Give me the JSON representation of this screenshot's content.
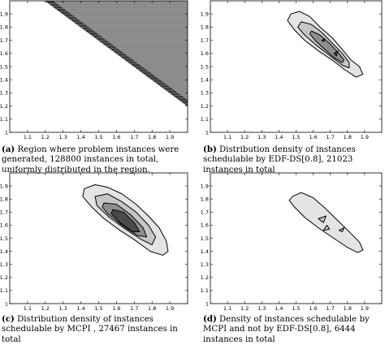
{
  "chart_data": [
    {
      "type": "contour",
      "id": "a",
      "caption_label": "(a)",
      "caption_text": "Region where problem instances were generated, 128800 instances in total, uniformly distributed in the region.",
      "xlim": [
        1,
        2
      ],
      "ylim": [
        1,
        2
      ],
      "xticks": [
        "1.1",
        "1.2",
        "1.3",
        "1.4",
        "1.5",
        "1.6",
        "1.7",
        "1.8",
        "1.9"
      ],
      "yticks": [
        "1",
        "1.1",
        "1.2",
        "1.3",
        "1.4",
        "1.5",
        "1.6",
        "1.7",
        "1.8",
        "1.9"
      ],
      "uniform_region": {
        "boundary_line": [
          [
            1.2,
            2.0
          ],
          [
            1.95,
            1.25
          ]
        ],
        "fill": "#8a8a8a"
      },
      "levels": []
    },
    {
      "type": "contour",
      "id": "b",
      "caption_label": "(b)",
      "caption_text": "Distribution density of instances schedulable by EDF-DS[0.8], 21023 instances in total",
      "xlim": [
        1,
        2
      ],
      "ylim": [
        1,
        2
      ],
      "xticks": [
        "1.1",
        "1.2",
        "1.3",
        "1.4",
        "1.5",
        "1.6",
        "1.7",
        "1.8",
        "1.9"
      ],
      "yticks": [
        "1",
        "1.1",
        "1.2",
        "1.3",
        "1.4",
        "1.5",
        "1.6",
        "1.7",
        "1.8",
        "1.9"
      ],
      "levels": [
        {
          "fill": "#e4e4e4",
          "points": [
            [
              1.47,
              1.9
            ],
            [
              1.52,
              1.92
            ],
            [
              1.58,
              1.88
            ],
            [
              1.64,
              1.8
            ],
            [
              1.71,
              1.72
            ],
            [
              1.77,
              1.63
            ],
            [
              1.82,
              1.55
            ],
            [
              1.87,
              1.5
            ],
            [
              1.89,
              1.44
            ],
            [
              1.85,
              1.42
            ],
            [
              1.78,
              1.48
            ],
            [
              1.71,
              1.55
            ],
            [
              1.63,
              1.62
            ],
            [
              1.55,
              1.7
            ],
            [
              1.49,
              1.78
            ],
            [
              1.45,
              1.85
            ]
          ]
        },
        {
          "fill": "#c6c6c6",
          "points": [
            [
              1.53,
              1.84
            ],
            [
              1.59,
              1.82
            ],
            [
              1.65,
              1.76
            ],
            [
              1.71,
              1.68
            ],
            [
              1.77,
              1.6
            ],
            [
              1.81,
              1.53
            ],
            [
              1.81,
              1.49
            ],
            [
              1.77,
              1.51
            ],
            [
              1.7,
              1.58
            ],
            [
              1.62,
              1.66
            ],
            [
              1.55,
              1.74
            ],
            [
              1.51,
              1.8
            ]
          ]
        },
        {
          "fill": "#8f8f8f",
          "points": [
            [
              1.59,
              1.77
            ],
            [
              1.64,
              1.74
            ],
            [
              1.7,
              1.67
            ],
            [
              1.75,
              1.6
            ],
            [
              1.78,
              1.55
            ],
            [
              1.77,
              1.53
            ],
            [
              1.72,
              1.57
            ],
            [
              1.66,
              1.64
            ],
            [
              1.61,
              1.7
            ],
            [
              1.58,
              1.75
            ]
          ]
        },
        {
          "fill": "#4a4a4a",
          "points": [
            [
              1.65,
              1.7
            ],
            [
              1.67,
              1.71
            ],
            [
              1.66,
              1.69
            ]
          ]
        },
        {
          "fill": "#4a4a4a",
          "points": [
            [
              1.72,
              1.6
            ],
            [
              1.745,
              1.62
            ],
            [
              1.735,
              1.58
            ]
          ]
        }
      ]
    },
    {
      "type": "contour",
      "id": "c",
      "caption_label": "(c)",
      "caption_text": "Distribution density of instances schedulable by MCPI , 27467 instances in total",
      "xlim": [
        1,
        2
      ],
      "ylim": [
        1,
        2
      ],
      "xticks": [
        "1.1",
        "1.2",
        "1.3",
        "1.4",
        "1.5",
        "1.6",
        "1.7",
        "1.8",
        "1.9"
      ],
      "yticks": [
        "1",
        "1.1",
        "1.2",
        "1.3",
        "1.4",
        "1.5",
        "1.6",
        "1.7",
        "1.8",
        "1.9"
      ],
      "levels": [
        {
          "fill": "#e4e4e4",
          "points": [
            [
              1.42,
              1.88
            ],
            [
              1.48,
              1.91
            ],
            [
              1.55,
              1.89
            ],
            [
              1.63,
              1.84
            ],
            [
              1.71,
              1.76
            ],
            [
              1.78,
              1.67
            ],
            [
              1.84,
              1.58
            ],
            [
              1.88,
              1.48
            ],
            [
              1.89,
              1.4
            ],
            [
              1.86,
              1.37
            ],
            [
              1.79,
              1.4
            ],
            [
              1.71,
              1.48
            ],
            [
              1.62,
              1.56
            ],
            [
              1.53,
              1.65
            ],
            [
              1.46,
              1.74
            ],
            [
              1.41,
              1.82
            ]
          ]
        },
        {
          "fill": "#c6c6c6",
          "points": [
            [
              1.48,
              1.82
            ],
            [
              1.55,
              1.84
            ],
            [
              1.63,
              1.78
            ],
            [
              1.71,
              1.7
            ],
            [
              1.78,
              1.6
            ],
            [
              1.82,
              1.51
            ],
            [
              1.8,
              1.45
            ],
            [
              1.74,
              1.49
            ],
            [
              1.65,
              1.57
            ],
            [
              1.56,
              1.66
            ],
            [
              1.49,
              1.75
            ]
          ]
        },
        {
          "fill": "#8f8f8f",
          "points": [
            [
              1.53,
              1.77
            ],
            [
              1.6,
              1.76
            ],
            [
              1.68,
              1.68
            ],
            [
              1.75,
              1.58
            ],
            [
              1.77,
              1.51
            ],
            [
              1.72,
              1.52
            ],
            [
              1.63,
              1.6
            ],
            [
              1.55,
              1.69
            ],
            [
              1.52,
              1.74
            ]
          ]
        },
        {
          "fill": "#4a4a4a",
          "points": [
            [
              1.58,
              1.72
            ],
            [
              1.64,
              1.7
            ],
            [
              1.7,
              1.62
            ],
            [
              1.73,
              1.55
            ],
            [
              1.69,
              1.55
            ],
            [
              1.62,
              1.62
            ],
            [
              1.57,
              1.69
            ]
          ]
        }
      ]
    },
    {
      "type": "contour",
      "id": "d",
      "caption_label": "(d)",
      "caption_text": "Density of instances schedulable by MCPI and not by EDF-DS[0.8], 6444 instances in total",
      "xlim": [
        1,
        2
      ],
      "ylim": [
        1,
        2
      ],
      "xticks": [
        "1.1",
        "1.2",
        "1.3",
        "1.4",
        "1.5",
        "1.6",
        "1.7",
        "1.8",
        "1.9"
      ],
      "yticks": [
        "1",
        "1.1",
        "1.2",
        "1.3",
        "1.4",
        "1.5",
        "1.6",
        "1.7",
        "1.8",
        "1.9"
      ],
      "levels": [
        {
          "fill": "#e4e4e4",
          "points": [
            [
              1.48,
              1.82
            ],
            [
              1.53,
              1.85
            ],
            [
              1.6,
              1.81
            ],
            [
              1.67,
              1.73
            ],
            [
              1.74,
              1.64
            ],
            [
              1.81,
              1.55
            ],
            [
              1.87,
              1.47
            ],
            [
              1.89,
              1.41
            ],
            [
              1.86,
              1.39
            ],
            [
              1.8,
              1.43
            ],
            [
              1.72,
              1.5
            ],
            [
              1.63,
              1.58
            ],
            [
              1.55,
              1.66
            ],
            [
              1.49,
              1.74
            ],
            [
              1.46,
              1.79
            ]
          ]
        },
        {
          "fill": "#c6c6c6",
          "points": [
            [
              1.63,
              1.65
            ],
            [
              1.675,
              1.67
            ],
            [
              1.66,
              1.62
            ]
          ]
        },
        {
          "fill": "#c6c6c6",
          "points": [
            [
              1.66,
              1.56
            ],
            [
              1.68,
              1.6
            ],
            [
              1.695,
              1.57
            ]
          ]
        },
        {
          "fill": "#c6c6c6",
          "points": [
            [
              1.75,
              1.56
            ],
            [
              1.78,
              1.58
            ],
            [
              1.77,
              1.55
            ]
          ]
        }
      ]
    }
  ]
}
